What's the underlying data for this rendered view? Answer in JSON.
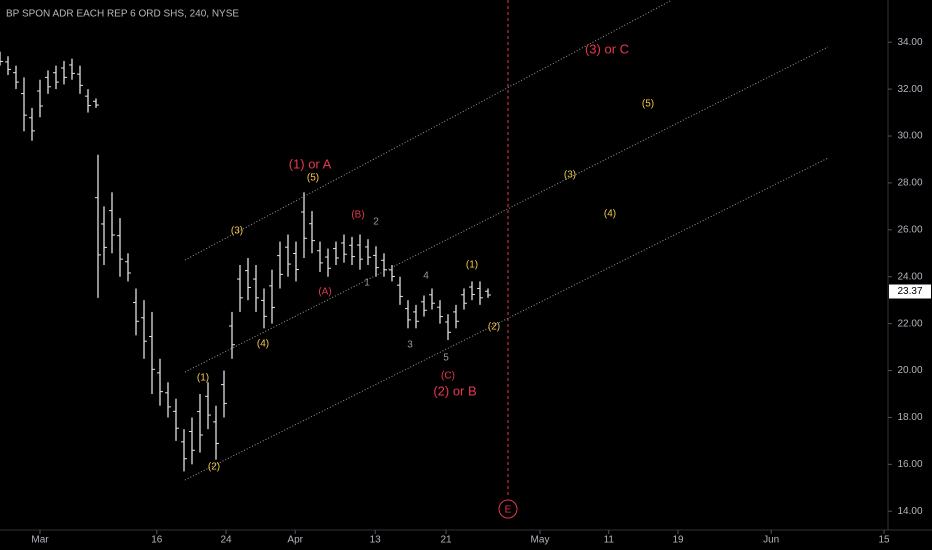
{
  "chart_data": {
    "type": "ohlc",
    "title": "BP SPON ADR EACH REP 6 ORD SHS, 240, NYSE",
    "x": [
      0,
      1,
      2,
      3,
      4,
      5,
      6,
      7,
      8,
      9,
      10,
      11,
      12,
      12.25,
      13,
      14,
      15,
      16,
      17,
      18,
      19,
      20,
      21,
      22,
      23,
      24,
      25,
      26,
      27,
      28,
      29,
      30,
      31,
      32,
      33,
      34,
      35,
      36,
      37,
      38,
      39,
      40,
      41,
      42,
      43,
      44,
      45,
      46,
      47,
      48,
      49,
      50,
      51,
      52,
      53,
      54,
      55,
      56,
      57,
      58,
      59,
      60,
      61
    ],
    "high": [
      33.6,
      33.4,
      33.0,
      32.5,
      31.2,
      32.4,
      32.8,
      33.0,
      33.2,
      33.3,
      33.0,
      32.0,
      31.6,
      29.2,
      27.0,
      27.6,
      26.5,
      25.0,
      23.5,
      23.0,
      22.5,
      20.5,
      19.5,
      18.8,
      17.5,
      18.0,
      19.0,
      19.5,
      18.5,
      20.0,
      22.5,
      24.5,
      24.8,
      24.5,
      23.5,
      24.3,
      25.5,
      25.8,
      25.5,
      27.6,
      26.8,
      25.5,
      25.2,
      25.5,
      25.8,
      25.7,
      25.8,
      25.6,
      25.3,
      25.0,
      24.5,
      24.0,
      23.0,
      22.8,
      23.2,
      23.5,
      23.0,
      22.4,
      22.8,
      23.5,
      23.8,
      23.8,
      23.5
    ],
    "low": [
      33.0,
      32.6,
      32.0,
      30.2,
      29.8,
      30.8,
      31.8,
      32.0,
      32.2,
      32.4,
      31.8,
      31.0,
      31.2,
      23.1,
      24.5,
      25.0,
      24.0,
      23.8,
      21.5,
      20.5,
      19.0,
      18.5,
      18.0,
      17.0,
      15.7,
      16.0,
      16.5,
      17.5,
      16.2,
      18.0,
      20.5,
      22.5,
      23.0,
      22.5,
      21.8,
      22.0,
      23.5,
      24.0,
      23.8,
      24.8,
      25.0,
      24.2,
      24.0,
      24.5,
      24.6,
      24.5,
      24.3,
      24.5,
      24.0,
      24.0,
      23.8,
      22.8,
      21.8,
      21.8,
      22.3,
      22.6,
      22.0,
      21.3,
      21.8,
      22.6,
      23.0,
      22.8,
      23.1
    ],
    "color": "#e0e0e0",
    "xlim": [
      0,
      111
    ],
    "xticks": [
      {
        "value": 5,
        "label": "Mar"
      },
      {
        "value": 19.6,
        "label": "16"
      },
      {
        "value": 28.25,
        "label": "24"
      },
      {
        "value": 36.9,
        "label": "Apr"
      },
      {
        "value": 46.9,
        "label": "13"
      },
      {
        "value": 55.75,
        "label": "21"
      },
      {
        "value": 67.5,
        "label": "May"
      },
      {
        "value": 76.1,
        "label": "11"
      },
      {
        "value": 84.75,
        "label": "19"
      },
      {
        "value": 96.4,
        "label": "Jun"
      },
      {
        "value": 110.5,
        "label": "15"
      }
    ],
    "ylim": [
      13.2,
      35.8
    ],
    "yticks": [
      {
        "value": 14,
        "label": "14.00"
      },
      {
        "value": 16,
        "label": "16.00"
      },
      {
        "value": 18,
        "label": "18.00"
      },
      {
        "value": 20,
        "label": "20.00"
      },
      {
        "value": 22,
        "label": "22.00"
      },
      {
        "value": 24,
        "label": "24.00"
      },
      {
        "value": 26,
        "label": "26.00"
      },
      {
        "value": 28,
        "label": "28.00"
      },
      {
        "value": 30,
        "label": "30.00"
      },
      {
        "value": 32,
        "label": "32.00"
      },
      {
        "value": 34,
        "label": "34.00"
      }
    ],
    "last_price": {
      "value": 23.37,
      "label": "23.37"
    },
    "annotations": [
      "(1) or A",
      "(5)",
      "(3)",
      "(B)",
      "2",
      "(A)",
      "1",
      "(4)",
      "(1)",
      "(2)",
      "4",
      "3",
      "5",
      "(C)",
      "(2) or B",
      "(1)",
      "(2)",
      "(3) or C",
      "(5)",
      "(3)",
      "(4)",
      "E"
    ]
  }
}
